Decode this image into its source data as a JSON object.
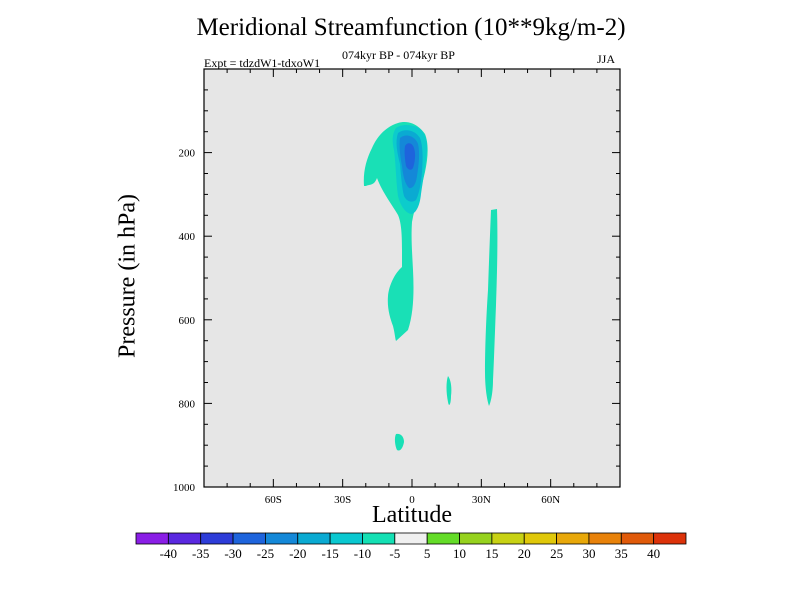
{
  "chart_data": {
    "type": "contour",
    "title": "Meridional Streamfunction (10**9kg/m-2)",
    "experiment_label": "Expt = tdzdW1-tdxoW1",
    "period_label": "074kyr BP - 074kyr BP",
    "season": "JJA",
    "xlabel": "Latitude",
    "ylabel": "Pressure (in hPa)",
    "x_ticks": [
      "60S",
      "30S",
      "0",
      "30N",
      "60N"
    ],
    "x_tick_values": [
      -60,
      -30,
      0,
      30,
      60
    ],
    "xlim": [
      -90,
      90
    ],
    "y_ticks": [
      "200",
      "400",
      "600",
      "800",
      "1000"
    ],
    "y_tick_values": [
      200,
      400,
      600,
      800,
      1000
    ],
    "ylim": [
      1000,
      0
    ],
    "colorbar": {
      "labels": [
        "-40",
        "-35",
        "-30",
        "-25",
        "-20",
        "-15",
        "-10",
        "-5",
        "5",
        "10",
        "15",
        "20",
        "25",
        "30",
        "35",
        "40"
      ],
      "colors": [
        "#8a1ee6",
        "#5a28e0",
        "#2d3cd8",
        "#1e64dc",
        "#1488d8",
        "#0aaad2",
        "#0ac8d0",
        "#14e0b4",
        "#f0f0f0",
        "#64dc28",
        "#96d21e",
        "#c8d214",
        "#e0c80a",
        "#e8a80a",
        "#e8820a",
        "#e05a0a",
        "#dc320a"
      ]
    },
    "regions": [
      {
        "level": "-10 to -5",
        "color": "#19e0b6",
        "description": "main northern cell, about 25S-5N, 130-650 hPa"
      },
      {
        "level": "-15 to -10",
        "color": "#0ccccc",
        "description": "upper cell core, 130-260 hPa"
      },
      {
        "level": "-20 to -15",
        "color": "#0aaad2",
        "description": "inner core"
      },
      {
        "level": "-25 to -20",
        "color": "#1488d8",
        "description": "inner core"
      },
      {
        "level": "-30 to -25",
        "color": "#1e64dc",
        "description": "cell maximum near 200 hPa, 0-5S"
      },
      {
        "level": "-10 to -5",
        "color": "#19e0b6",
        "description": "narrow column about 32N, 330-800 hPa"
      },
      {
        "level": "-10 to -5",
        "color": "#19e0b6",
        "description": "small patch about 17N, 770-810 hPa"
      },
      {
        "level": "-10 to -5",
        "color": "#19e0b6",
        "description": "small patch about 5S, 880-915 hPa"
      }
    ],
    "background_color": "#e6e6e6"
  }
}
